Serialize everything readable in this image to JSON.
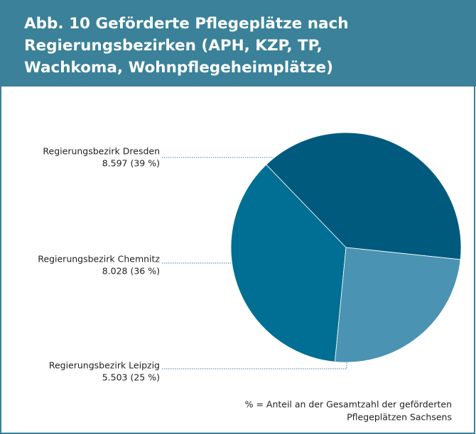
{
  "chart_data": {
    "type": "pie",
    "title": "Abb. 10  Geförderte Pflegeplätze nach Regierungsbezirken (APH, KZP, TP, Wachkoma, Wohnpflegeheimplätze)",
    "categories": [
      "Regierungsbezirk Dresden",
      "Regierungsbezirk Chemnitz",
      "Regierungsbezirk Leipzig"
    ],
    "values": [
      8597,
      8028,
      5503
    ],
    "value_labels": [
      "8.597 (39 %)",
      "8.028 (36 %)",
      "5.503 (25 %)"
    ],
    "colors": [
      "#005a7e",
      "#006f93",
      "#4a93b3"
    ],
    "note": [
      "% = Anteil an der Gesamtzahl der geförderten",
      "Pflegeplätzen Sachsens"
    ]
  }
}
